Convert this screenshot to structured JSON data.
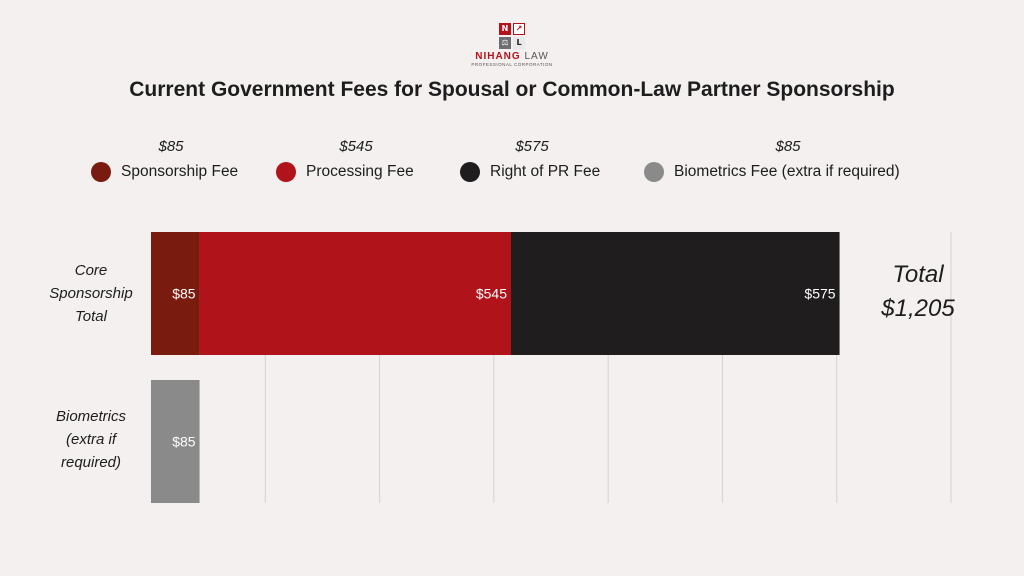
{
  "logo": {
    "cells": [
      "N",
      "↗",
      "⚖",
      "L"
    ],
    "name_1": "NIHANG",
    "name_2": "LAW",
    "sub": "PROFESSIONAL CORPORATION"
  },
  "legend": [
    {
      "value": "$85",
      "label": "Sponsorship Fee",
      "color": "#7a1b0f"
    },
    {
      "value": "$545",
      "label": "Processing Fee",
      "color": "#b01319"
    },
    {
      "value": "$575",
      "label": "Right of PR Fee",
      "color": "#1f1d1e"
    },
    {
      "value": "$85",
      "label": "Biometrics Fee (extra if required)",
      "color": "#8a8a8a"
    }
  ],
  "total": {
    "label": "Total",
    "value": "$1,205"
  },
  "chart_data": {
    "type": "bar",
    "orientation": "horizontal",
    "stacked": true,
    "title": "Current Government Fees for Spousal or Common-Law Partner Sponsorship",
    "categories": [
      "Core Sponsorship Total",
      "Biometrics (extra if required)"
    ],
    "category_lines": [
      [
        "Core",
        "Sponsorship",
        "Total"
      ],
      [
        "Biometrics",
        "(extra if",
        "required)"
      ]
    ],
    "series": [
      {
        "name": "Sponsorship Fee",
        "values": [
          85,
          0
        ],
        "labels": [
          "$85",
          ""
        ],
        "color": "#7a1b0f"
      },
      {
        "name": "Processing Fee",
        "values": [
          545,
          0
        ],
        "labels": [
          "$545",
          ""
        ],
        "color": "#b01319"
      },
      {
        "name": "Right of PR Fee",
        "values": [
          575,
          0
        ],
        "labels": [
          "$575",
          ""
        ],
        "color": "#1f1d1e"
      },
      {
        "name": "Biometrics Fee (extra if required)",
        "values": [
          0,
          85
        ],
        "labels": [
          "",
          "$85"
        ],
        "color": "#8a8a8a"
      }
    ],
    "xlim": [
      0,
      1400
    ],
    "grid": true,
    "legend_position": "top"
  }
}
